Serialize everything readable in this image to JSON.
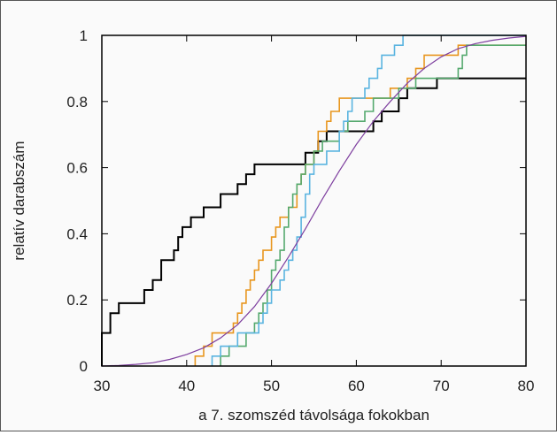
{
  "chart_data": {
    "type": "line",
    "title": "",
    "xlabel": "a 7. szomszéd távolsága fokokban",
    "ylabel": "relatív darabszám",
    "xlim": [
      30,
      80
    ],
    "ylim": [
      0,
      1
    ],
    "x_ticks": [
      "30",
      "40",
      "50",
      "60",
      "70",
      "80"
    ],
    "y_ticks": [
      "0",
      "0.2",
      "0.4",
      "0.6",
      "0.8",
      "1"
    ],
    "grid": false,
    "legend": "none",
    "series": [
      {
        "color": "#000000",
        "style": "step",
        "points": [
          [
            30,
            0
          ],
          [
            30,
            0.1
          ],
          [
            31,
            0.1
          ],
          [
            31,
            0.16
          ],
          [
            32,
            0.16
          ],
          [
            32,
            0.19
          ],
          [
            35,
            0.19
          ],
          [
            35,
            0.23
          ],
          [
            36,
            0.23
          ],
          [
            36,
            0.26
          ],
          [
            37,
            0.26
          ],
          [
            37,
            0.32
          ],
          [
            38.5,
            0.32
          ],
          [
            38.5,
            0.35
          ],
          [
            39,
            0.35
          ],
          [
            39,
            0.39
          ],
          [
            39.5,
            0.39
          ],
          [
            39.5,
            0.42
          ],
          [
            40.5,
            0.42
          ],
          [
            40.5,
            0.45
          ],
          [
            42,
            0.45
          ],
          [
            42,
            0.48
          ],
          [
            44,
            0.48
          ],
          [
            44,
            0.52
          ],
          [
            46,
            0.52
          ],
          [
            46,
            0.55
          ],
          [
            47,
            0.55
          ],
          [
            47,
            0.58
          ],
          [
            48,
            0.58
          ],
          [
            48,
            0.61
          ],
          [
            54,
            0.61
          ],
          [
            54,
            0.645
          ],
          [
            55.5,
            0.645
          ],
          [
            55.5,
            0.68
          ],
          [
            56.5,
            0.68
          ],
          [
            56.5,
            0.71
          ],
          [
            62,
            0.71
          ],
          [
            62,
            0.74
          ],
          [
            63,
            0.74
          ],
          [
            63,
            0.77
          ],
          [
            65,
            0.77
          ],
          [
            65,
            0.81
          ],
          [
            66,
            0.81
          ],
          [
            66,
            0.84
          ],
          [
            69.5,
            0.84
          ],
          [
            69.5,
            0.87
          ],
          [
            80,
            0.87
          ]
        ]
      },
      {
        "color": "#e8961e",
        "style": "step",
        "points": [
          [
            41,
            0
          ],
          [
            41,
            0.03
          ],
          [
            42,
            0.03
          ],
          [
            42,
            0.06
          ],
          [
            43,
            0.06
          ],
          [
            43,
            0.1
          ],
          [
            45.5,
            0.1
          ],
          [
            45.5,
            0.13
          ],
          [
            46,
            0.13
          ],
          [
            46,
            0.16
          ],
          [
            46.5,
            0.16
          ],
          [
            46.5,
            0.19
          ],
          [
            47,
            0.19
          ],
          [
            47,
            0.23
          ],
          [
            47.5,
            0.23
          ],
          [
            47.5,
            0.26
          ],
          [
            48,
            0.26
          ],
          [
            48,
            0.29
          ],
          [
            48.5,
            0.29
          ],
          [
            48.5,
            0.32
          ],
          [
            49,
            0.32
          ],
          [
            49,
            0.35
          ],
          [
            50,
            0.35
          ],
          [
            50,
            0.39
          ],
          [
            50.5,
            0.39
          ],
          [
            50.5,
            0.42
          ],
          [
            51,
            0.42
          ],
          [
            51,
            0.45
          ],
          [
            52,
            0.45
          ],
          [
            52,
            0.48
          ],
          [
            53,
            0.48
          ],
          [
            53,
            0.55
          ],
          [
            53.5,
            0.55
          ],
          [
            53.5,
            0.58
          ],
          [
            54,
            0.58
          ],
          [
            54,
            0.61
          ],
          [
            55,
            0.61
          ],
          [
            55,
            0.65
          ],
          [
            55.5,
            0.65
          ],
          [
            55.5,
            0.71
          ],
          [
            56.5,
            0.71
          ],
          [
            56.5,
            0.74
          ],
          [
            57,
            0.74
          ],
          [
            57,
            0.77
          ],
          [
            58,
            0.77
          ],
          [
            58,
            0.81
          ],
          [
            64,
            0.81
          ],
          [
            64,
            0.84
          ],
          [
            66,
            0.84
          ],
          [
            66,
            0.87
          ],
          [
            67,
            0.87
          ],
          [
            67,
            0.9
          ],
          [
            68,
            0.9
          ],
          [
            68,
            0.94
          ],
          [
            72,
            0.94
          ],
          [
            72,
            0.97
          ],
          [
            80,
            0.97
          ]
        ]
      },
      {
        "color": "#55a96e",
        "style": "step",
        "points": [
          [
            44,
            0
          ],
          [
            44,
            0.03
          ],
          [
            45,
            0.03
          ],
          [
            45,
            0.06
          ],
          [
            47,
            0.06
          ],
          [
            47,
            0.1
          ],
          [
            48,
            0.1
          ],
          [
            48,
            0.13
          ],
          [
            48.5,
            0.13
          ],
          [
            48.5,
            0.16
          ],
          [
            49,
            0.16
          ],
          [
            49,
            0.19
          ],
          [
            49.5,
            0.19
          ],
          [
            49.5,
            0.23
          ],
          [
            50,
            0.23
          ],
          [
            50,
            0.29
          ],
          [
            50.5,
            0.29
          ],
          [
            50.5,
            0.32
          ],
          [
            51,
            0.32
          ],
          [
            51,
            0.35
          ],
          [
            51.5,
            0.35
          ],
          [
            51.5,
            0.42
          ],
          [
            52,
            0.42
          ],
          [
            52,
            0.48
          ],
          [
            52.5,
            0.48
          ],
          [
            52.5,
            0.52
          ],
          [
            53,
            0.52
          ],
          [
            53,
            0.55
          ],
          [
            53.5,
            0.55
          ],
          [
            53.5,
            0.58
          ],
          [
            54,
            0.58
          ],
          [
            54,
            0.61
          ],
          [
            55,
            0.61
          ],
          [
            55,
            0.65
          ],
          [
            56,
            0.65
          ],
          [
            56,
            0.68
          ],
          [
            58,
            0.68
          ],
          [
            58,
            0.71
          ],
          [
            59,
            0.71
          ],
          [
            59,
            0.74
          ],
          [
            61,
            0.74
          ],
          [
            61,
            0.77
          ],
          [
            62,
            0.77
          ],
          [
            62,
            0.81
          ],
          [
            65,
            0.81
          ],
          [
            65,
            0.84
          ],
          [
            67,
            0.84
          ],
          [
            67,
            0.87
          ],
          [
            72,
            0.87
          ],
          [
            72,
            0.9
          ],
          [
            72.5,
            0.9
          ],
          [
            72.5,
            0.94
          ],
          [
            73,
            0.94
          ],
          [
            73,
            0.97
          ],
          [
            80,
            0.97
          ]
        ]
      },
      {
        "color": "#5ab4e0",
        "style": "step",
        "points": [
          [
            43,
            0
          ],
          [
            43,
            0.03
          ],
          [
            44,
            0.03
          ],
          [
            44,
            0.06
          ],
          [
            46,
            0.06
          ],
          [
            46,
            0.1
          ],
          [
            48.5,
            0.1
          ],
          [
            48.5,
            0.13
          ],
          [
            49,
            0.13
          ],
          [
            49,
            0.16
          ],
          [
            49.5,
            0.16
          ],
          [
            49.5,
            0.19
          ],
          [
            50,
            0.19
          ],
          [
            50,
            0.23
          ],
          [
            51,
            0.23
          ],
          [
            51,
            0.26
          ],
          [
            51.5,
            0.26
          ],
          [
            51.5,
            0.29
          ],
          [
            52,
            0.29
          ],
          [
            52,
            0.32
          ],
          [
            52.5,
            0.32
          ],
          [
            52.5,
            0.35
          ],
          [
            53,
            0.35
          ],
          [
            53,
            0.39
          ],
          [
            53.5,
            0.39
          ],
          [
            53.5,
            0.45
          ],
          [
            54,
            0.45
          ],
          [
            54,
            0.52
          ],
          [
            54.5,
            0.52
          ],
          [
            54.5,
            0.58
          ],
          [
            55,
            0.58
          ],
          [
            55,
            0.61
          ],
          [
            56.5,
            0.61
          ],
          [
            56.5,
            0.65
          ],
          [
            58,
            0.65
          ],
          [
            58,
            0.71
          ],
          [
            58.5,
            0.71
          ],
          [
            58.5,
            0.74
          ],
          [
            59,
            0.74
          ],
          [
            59,
            0.77
          ],
          [
            59.5,
            0.77
          ],
          [
            59.5,
            0.81
          ],
          [
            61,
            0.81
          ],
          [
            61,
            0.84
          ],
          [
            61.5,
            0.84
          ],
          [
            61.5,
            0.87
          ],
          [
            62.5,
            0.87
          ],
          [
            62.5,
            0.9
          ],
          [
            63,
            0.9
          ],
          [
            63,
            0.94
          ],
          [
            64.5,
            0.94
          ],
          [
            64.5,
            0.97
          ],
          [
            65.5,
            0.97
          ],
          [
            65.5,
            1
          ],
          [
            80,
            1
          ]
        ]
      },
      {
        "color": "#7e3f9f",
        "style": "curve",
        "points": [
          [
            30,
            0
          ],
          [
            32,
            0.002
          ],
          [
            34,
            0.005
          ],
          [
            36,
            0.01
          ],
          [
            38,
            0.02
          ],
          [
            40,
            0.035
          ],
          [
            42,
            0.055
          ],
          [
            44,
            0.085
          ],
          [
            46,
            0.125
          ],
          [
            48,
            0.18
          ],
          [
            50,
            0.25
          ],
          [
            52,
            0.33
          ],
          [
            54,
            0.415
          ],
          [
            56,
            0.505
          ],
          [
            58,
            0.59
          ],
          [
            60,
            0.67
          ],
          [
            62,
            0.74
          ],
          [
            64,
            0.8
          ],
          [
            66,
            0.855
          ],
          [
            68,
            0.9
          ],
          [
            70,
            0.935
          ],
          [
            72,
            0.96
          ],
          [
            74,
            0.975
          ],
          [
            76,
            0.985
          ],
          [
            78,
            0.992
          ],
          [
            80,
            0.997
          ]
        ]
      }
    ]
  }
}
